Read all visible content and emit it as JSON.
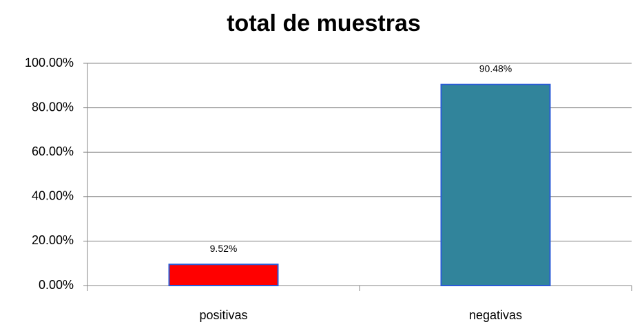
{
  "chart_data": {
    "type": "bar",
    "title": "total de muestras",
    "categories": [
      "positivas",
      "negativas"
    ],
    "values": [
      9.52,
      90.48
    ],
    "value_labels": [
      "9.52%",
      "90.48%"
    ],
    "colors": [
      "#ff0000",
      "#31849b"
    ],
    "edgecolor": "#2a5bd7",
    "ylim": [
      0,
      100
    ],
    "yticks": [
      {
        "value": 0,
        "label": "0.00%"
      },
      {
        "value": 20,
        "label": "20.00%"
      },
      {
        "value": 40,
        "label": "40.00%"
      },
      {
        "value": 60,
        "label": "60.00%"
      },
      {
        "value": 80,
        "label": "80.00%"
      },
      {
        "value": 100,
        "label": "100.00%"
      }
    ],
    "grid": true
  }
}
